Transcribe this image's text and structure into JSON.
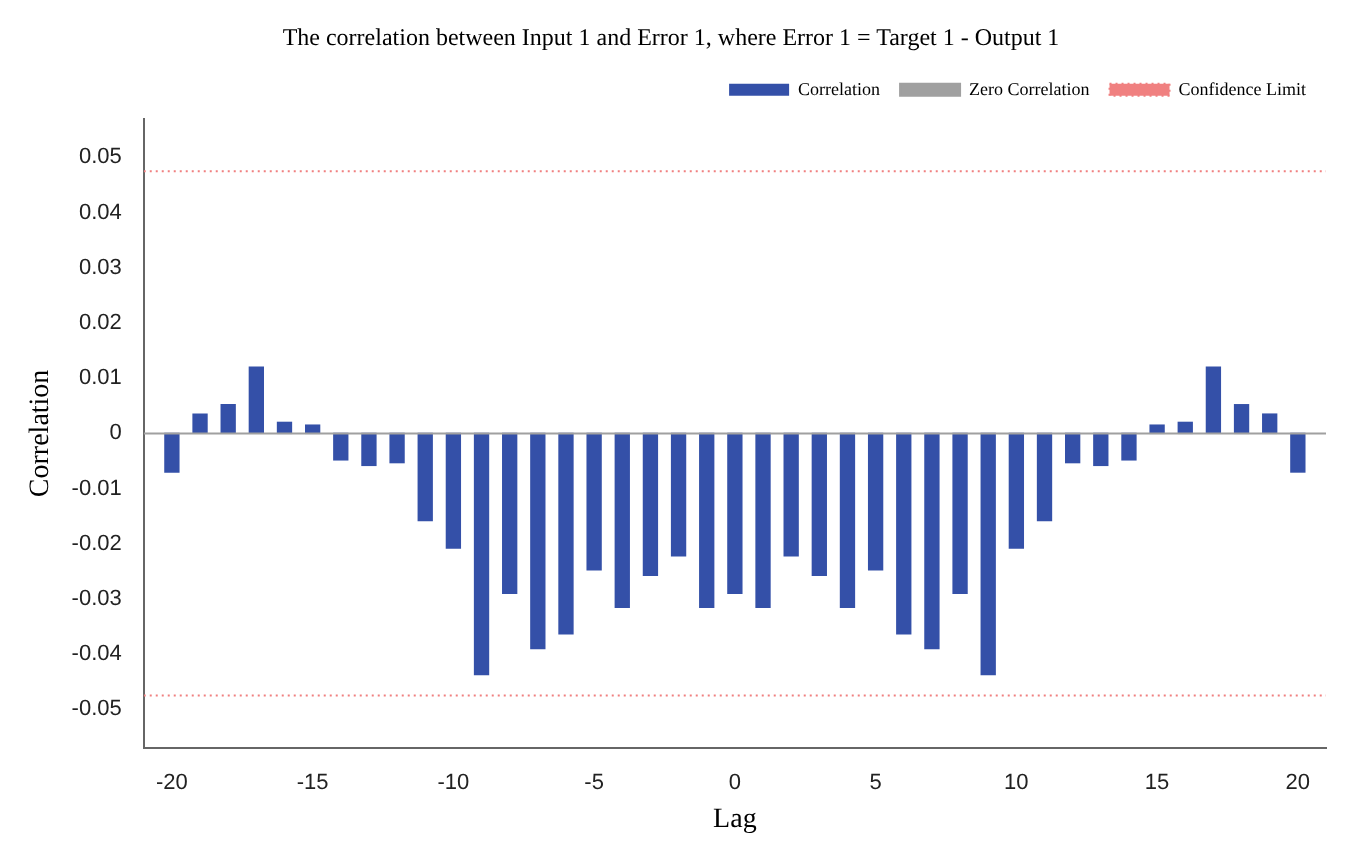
{
  "chart_data": {
    "type": "bar",
    "title": "The correlation between Input 1 and Error 1, where Error 1 = Target 1 - Output 1",
    "xlabel": "Lag",
    "ylabel": "Correlation",
    "x": [
      -20,
      -19,
      -18,
      -17,
      -16,
      -15,
      -14,
      -13,
      -12,
      -11,
      -10,
      -9,
      -8,
      -7,
      -6,
      -5,
      -4,
      -3,
      -2,
      -1,
      0,
      1,
      2,
      3,
      4,
      5,
      6,
      7,
      8,
      9,
      10,
      11,
      12,
      13,
      14,
      15,
      16,
      17,
      18,
      19,
      20
    ],
    "series": [
      {
        "name": "Correlation",
        "color": "#3450a8",
        "values": [
          -0.007,
          0.0035,
          0.0052,
          0.012,
          0.002,
          0.0015,
          -0.0048,
          -0.0058,
          -0.0053,
          -0.0158,
          -0.0208,
          -0.0437,
          -0.029,
          -0.039,
          -0.0363,
          -0.0247,
          -0.0315,
          -0.0257,
          -0.0222,
          -0.0315,
          -0.029,
          -0.0315,
          -0.0222,
          -0.0257,
          -0.0315,
          -0.0247,
          -0.0363,
          -0.039,
          -0.029,
          -0.0437,
          -0.0208,
          -0.0158,
          -0.0053,
          -0.0058,
          -0.0048,
          0.0015,
          0.002,
          0.012,
          0.0052,
          0.0035,
          -0.007
        ]
      }
    ],
    "xlim": [
      -21,
      21
    ],
    "xticks": [
      -20,
      -15,
      -10,
      -5,
      0,
      5,
      10,
      15,
      20
    ],
    "ylim": [
      -0.057,
      0.057
    ],
    "yticks": [
      -0.05,
      -0.04,
      -0.03,
      -0.02,
      -0.01,
      0,
      0.01,
      0.02,
      0.03,
      0.04,
      0.05
    ],
    "ref_lines": [
      {
        "axis": "y",
        "value": 0,
        "label": "Zero Correlation",
        "color": "#a0a0a0",
        "line_style": "solid"
      },
      {
        "axis": "y",
        "value": 0.0475,
        "label": "Confidence Limit",
        "color": "#f08080",
        "line_style": "dotted"
      },
      {
        "axis": "y",
        "value": -0.0475,
        "color": "#f08080",
        "line_style": "dotted"
      }
    ],
    "grid": false,
    "legend": "top right"
  }
}
